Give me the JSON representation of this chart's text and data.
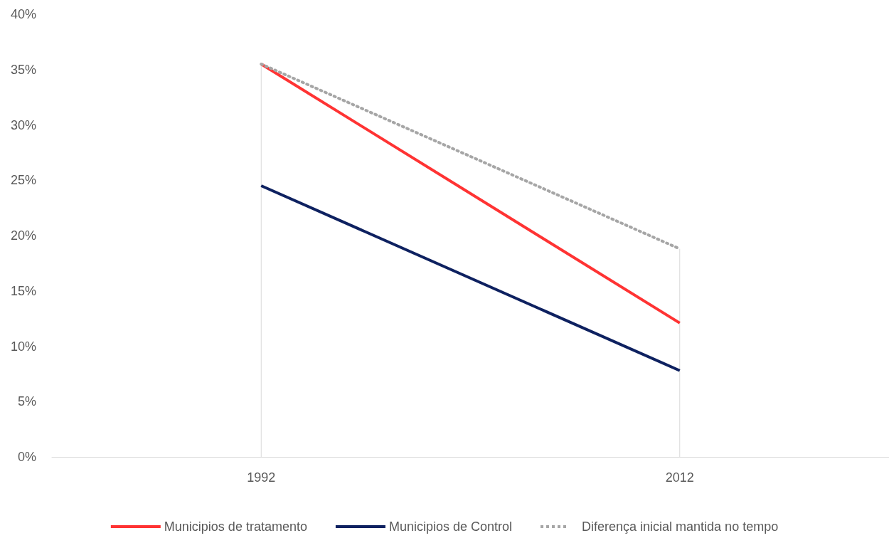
{
  "chart_data": {
    "type": "line",
    "categories": [
      "1992",
      "2012"
    ],
    "series": [
      {
        "name": "Municipios de tratamento",
        "color": "#ff3333",
        "values": [
          35.5,
          12.1
        ],
        "line_style": "solid"
      },
      {
        "name": "Municipios de Control",
        "color": "#0e2160",
        "values": [
          24.5,
          7.8
        ],
        "line_style": "solid"
      },
      {
        "name": "Diferença inicial mantida no tempo",
        "color": "#a6a6a6",
        "values": [
          35.5,
          18.8
        ],
        "line_style": "dotted"
      }
    ],
    "ylim": [
      0,
      40
    ],
    "yticks": [
      {
        "value": 0,
        "label": "0%"
      },
      {
        "value": 5,
        "label": "5%"
      },
      {
        "value": 10,
        "label": "10%"
      },
      {
        "value": 15,
        "label": "15%"
      },
      {
        "value": 20,
        "label": "20%"
      },
      {
        "value": 25,
        "label": "25%"
      },
      {
        "value": 30,
        "label": "30%"
      },
      {
        "value": 35,
        "label": "35%"
      },
      {
        "value": 40,
        "label": "40%"
      }
    ],
    "ref_lines": [
      {
        "axis": "x",
        "value": "1992",
        "color": "#d9d9d9"
      },
      {
        "axis": "x",
        "value": "2012",
        "color": "#d9d9d9"
      }
    ],
    "grid": false,
    "legend": "bottom",
    "marker": "none"
  }
}
